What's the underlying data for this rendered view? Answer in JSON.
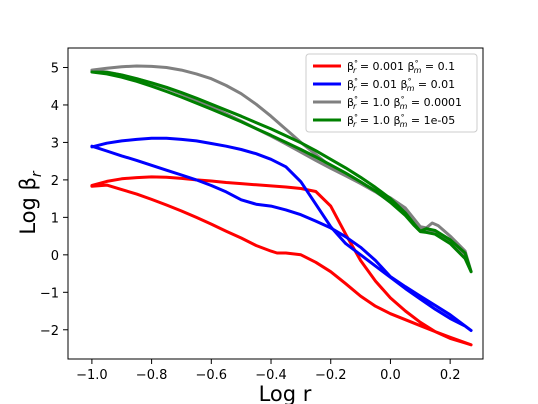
{
  "chart_data": {
    "type": "line",
    "title": "",
    "xlabel": "Log r",
    "ylabel_main": "Log β",
    "ylabel_sub": "r",
    "xlim": [
      -1.08,
      0.31
    ],
    "ylim": [
      -2.78,
      5.52
    ],
    "x_ticks": [
      -1.0,
      -0.8,
      -0.6,
      -0.4,
      -0.2,
      0.0,
      0.2
    ],
    "x_tick_labels": [
      "−1.0",
      "−0.8",
      "−0.6",
      "−0.4",
      "−0.2",
      "0.0",
      "0.2"
    ],
    "y_ticks": [
      -2,
      -1,
      0,
      1,
      2,
      3,
      4,
      5
    ],
    "y_tick_labels": [
      "−2",
      "−1",
      "0",
      "1",
      "2",
      "3",
      "4",
      "5"
    ],
    "grid": false,
    "legend_position": "top-right",
    "series": [
      {
        "legend_label": "β°r = 0.001 β°m = 0.1",
        "label_parts": [
          "β",
          "°",
          "r",
          " =  0.001 ",
          "β",
          "°",
          "m",
          " = 0.1"
        ],
        "color": "#ff0000",
        "points": [
          [
            -1.0,
            1.85
          ],
          [
            -0.95,
            1.96
          ],
          [
            -0.9,
            2.03
          ],
          [
            -0.85,
            2.06
          ],
          [
            -0.8,
            2.08
          ],
          [
            -0.75,
            2.07
          ],
          [
            -0.7,
            2.04
          ],
          [
            -0.65,
            2.0
          ],
          [
            -0.6,
            1.97
          ],
          [
            -0.55,
            1.93
          ],
          [
            -0.5,
            1.9
          ],
          [
            -0.45,
            1.87
          ],
          [
            -0.4,
            1.84
          ],
          [
            -0.35,
            1.81
          ],
          [
            -0.3,
            1.77
          ],
          [
            -0.25,
            1.69
          ],
          [
            -0.2,
            1.3
          ],
          [
            -0.15,
            0.55
          ],
          [
            -0.1,
            -0.15
          ],
          [
            -0.05,
            -0.7
          ],
          [
            0.0,
            -1.15
          ],
          [
            0.05,
            -1.5
          ],
          [
            0.1,
            -1.8
          ],
          [
            0.15,
            -2.05
          ],
          [
            0.2,
            -2.23
          ],
          [
            0.25,
            -2.35
          ],
          [
            0.27,
            -2.4
          ],
          [
            0.2,
            -2.2
          ],
          [
            0.15,
            -2.05
          ],
          [
            0.1,
            -1.89
          ],
          [
            0.05,
            -1.73
          ],
          [
            0.0,
            -1.57
          ],
          [
            -0.05,
            -1.37
          ],
          [
            -0.1,
            -1.1
          ],
          [
            -0.15,
            -0.77
          ],
          [
            -0.2,
            -0.45
          ],
          [
            -0.25,
            -0.2
          ],
          [
            -0.3,
            0.0
          ],
          [
            -0.35,
            0.05
          ],
          [
            -0.38,
            0.05
          ],
          [
            -0.4,
            0.1
          ],
          [
            -0.45,
            0.25
          ],
          [
            -0.5,
            0.45
          ],
          [
            -0.55,
            0.63
          ],
          [
            -0.6,
            0.82
          ],
          [
            -0.65,
            1.0
          ],
          [
            -0.7,
            1.17
          ],
          [
            -0.75,
            1.33
          ],
          [
            -0.8,
            1.48
          ],
          [
            -0.85,
            1.62
          ],
          [
            -0.9,
            1.74
          ],
          [
            -0.95,
            1.86
          ],
          [
            -1.0,
            1.83
          ]
        ]
      },
      {
        "legend_label": "β°r = 0.01 β°m = 0.01",
        "label_parts": [
          "β",
          "°",
          "r",
          " =  0.01 ",
          "β",
          "°",
          "m",
          " = 0.01"
        ],
        "color": "#0000ff",
        "points": [
          [
            -1.0,
            2.88
          ],
          [
            -0.95,
            2.98
          ],
          [
            -0.9,
            3.04
          ],
          [
            -0.85,
            3.08
          ],
          [
            -0.8,
            3.11
          ],
          [
            -0.75,
            3.11
          ],
          [
            -0.7,
            3.08
          ],
          [
            -0.65,
            3.04
          ],
          [
            -0.6,
            2.97
          ],
          [
            -0.55,
            2.9
          ],
          [
            -0.5,
            2.81
          ],
          [
            -0.45,
            2.7
          ],
          [
            -0.4,
            2.55
          ],
          [
            -0.35,
            2.35
          ],
          [
            -0.3,
            1.95
          ],
          [
            -0.25,
            1.35
          ],
          [
            -0.2,
            0.75
          ],
          [
            -0.15,
            0.3
          ],
          [
            -0.1,
            0.0
          ],
          [
            -0.05,
            -0.3
          ],
          [
            0.0,
            -0.6
          ],
          [
            0.05,
            -0.9
          ],
          [
            0.1,
            -1.18
          ],
          [
            0.15,
            -1.45
          ],
          [
            0.2,
            -1.7
          ],
          [
            0.25,
            -1.9
          ],
          [
            0.27,
            -2.02
          ],
          [
            0.2,
            -1.6
          ],
          [
            0.15,
            -1.35
          ],
          [
            0.1,
            -1.1
          ],
          [
            0.05,
            -0.85
          ],
          [
            0.0,
            -0.58
          ],
          [
            -0.05,
            -0.15
          ],
          [
            -0.1,
            0.2
          ],
          [
            -0.15,
            0.48
          ],
          [
            -0.2,
            0.72
          ],
          [
            -0.25,
            0.9
          ],
          [
            -0.3,
            1.07
          ],
          [
            -0.35,
            1.2
          ],
          [
            -0.4,
            1.3
          ],
          [
            -0.45,
            1.35
          ],
          [
            -0.5,
            1.47
          ],
          [
            -0.55,
            1.68
          ],
          [
            -0.6,
            1.85
          ],
          [
            -0.65,
            2.0
          ],
          [
            -0.7,
            2.13
          ],
          [
            -0.75,
            2.26
          ],
          [
            -0.8,
            2.39
          ],
          [
            -0.85,
            2.52
          ],
          [
            -0.9,
            2.64
          ],
          [
            -0.95,
            2.77
          ],
          [
            -1.0,
            2.9
          ]
        ]
      },
      {
        "legend_label": "β°r = 1.0 β°m = 0.0001",
        "label_parts": [
          "β",
          "°",
          "r",
          " =  1.0 ",
          "β",
          "°",
          "m",
          " = 0.0001"
        ],
        "color": "#808080",
        "points": [
          [
            -1.0,
            4.93
          ],
          [
            -0.95,
            4.98
          ],
          [
            -0.9,
            5.02
          ],
          [
            -0.85,
            5.04
          ],
          [
            -0.8,
            5.03
          ],
          [
            -0.75,
            5.0
          ],
          [
            -0.7,
            4.93
          ],
          [
            -0.65,
            4.83
          ],
          [
            -0.6,
            4.7
          ],
          [
            -0.55,
            4.52
          ],
          [
            -0.5,
            4.3
          ],
          [
            -0.45,
            4.02
          ],
          [
            -0.4,
            3.7
          ],
          [
            -0.35,
            3.35
          ],
          [
            -0.3,
            3.0
          ],
          [
            -0.25,
            2.68
          ],
          [
            -0.2,
            2.36
          ],
          [
            -0.15,
            2.14
          ],
          [
            -0.1,
            1.92
          ],
          [
            -0.05,
            1.72
          ],
          [
            0.0,
            1.52
          ],
          [
            0.05,
            1.25
          ],
          [
            0.1,
            0.75
          ],
          [
            0.12,
            0.72
          ],
          [
            0.14,
            0.85
          ],
          [
            0.16,
            0.78
          ],
          [
            0.2,
            0.5
          ],
          [
            0.25,
            0.1
          ],
          [
            0.27,
            -0.45
          ],
          [
            0.25,
            -0.05
          ],
          [
            0.2,
            0.35
          ],
          [
            0.15,
            0.6
          ],
          [
            0.12,
            0.63
          ],
          [
            0.1,
            0.7
          ],
          [
            0.05,
            1.2
          ],
          [
            0.0,
            1.42
          ],
          [
            -0.05,
            1.68
          ],
          [
            -0.1,
            1.9
          ],
          [
            -0.15,
            2.11
          ],
          [
            -0.2,
            2.31
          ],
          [
            -0.25,
            2.52
          ],
          [
            -0.3,
            2.74
          ],
          [
            -0.35,
            2.96
          ],
          [
            -0.4,
            3.17
          ],
          [
            -0.45,
            3.37
          ],
          [
            -0.5,
            3.57
          ],
          [
            -0.55,
            3.76
          ],
          [
            -0.6,
            3.95
          ],
          [
            -0.65,
            4.13
          ],
          [
            -0.7,
            4.3
          ],
          [
            -0.75,
            4.45
          ],
          [
            -0.8,
            4.58
          ],
          [
            -0.85,
            4.7
          ],
          [
            -0.9,
            4.8
          ],
          [
            -0.95,
            4.88
          ],
          [
            -1.0,
            4.92
          ]
        ]
      },
      {
        "legend_label": "β°r = 1.0 β°m = 1e-05",
        "label_parts": [
          "β",
          "°",
          "r",
          " =  1.0 ",
          "β",
          "°",
          "m",
          " = 1e-05"
        ],
        "color": "#008000",
        "points": [
          [
            -1.0,
            4.88
          ],
          [
            -0.95,
            4.87
          ],
          [
            -0.9,
            4.8
          ],
          [
            -0.85,
            4.7
          ],
          [
            -0.8,
            4.59
          ],
          [
            -0.75,
            4.47
          ],
          [
            -0.7,
            4.33
          ],
          [
            -0.65,
            4.18
          ],
          [
            -0.6,
            4.02
          ],
          [
            -0.55,
            3.86
          ],
          [
            -0.5,
            3.7
          ],
          [
            -0.45,
            3.53
          ],
          [
            -0.4,
            3.36
          ],
          [
            -0.35,
            3.18
          ],
          [
            -0.3,
            2.99
          ],
          [
            -0.25,
            2.78
          ],
          [
            -0.2,
            2.55
          ],
          [
            -0.15,
            2.32
          ],
          [
            -0.1,
            2.07
          ],
          [
            -0.05,
            1.8
          ],
          [
            0.0,
            1.5
          ],
          [
            0.05,
            1.12
          ],
          [
            0.08,
            0.82
          ],
          [
            0.1,
            0.63
          ],
          [
            0.12,
            0.7
          ],
          [
            0.15,
            0.65
          ],
          [
            0.2,
            0.4
          ],
          [
            0.25,
            0.05
          ],
          [
            0.27,
            -0.45
          ],
          [
            0.25,
            -0.1
          ],
          [
            0.2,
            0.3
          ],
          [
            0.15,
            0.55
          ],
          [
            0.12,
            0.6
          ],
          [
            0.1,
            0.62
          ],
          [
            0.08,
            0.78
          ],
          [
            0.05,
            1.05
          ],
          [
            0.0,
            1.4
          ],
          [
            -0.05,
            1.7
          ],
          [
            -0.1,
            1.95
          ],
          [
            -0.15,
            2.18
          ],
          [
            -0.2,
            2.4
          ],
          [
            -0.25,
            2.61
          ],
          [
            -0.3,
            2.81
          ],
          [
            -0.35,
            3.0
          ],
          [
            -0.4,
            3.19
          ],
          [
            -0.45,
            3.37
          ],
          [
            -0.5,
            3.55
          ],
          [
            -0.55,
            3.72
          ],
          [
            -0.6,
            3.89
          ],
          [
            -0.65,
            4.05
          ],
          [
            -0.7,
            4.21
          ],
          [
            -0.75,
            4.36
          ],
          [
            -0.8,
            4.5
          ],
          [
            -0.85,
            4.63
          ],
          [
            -0.9,
            4.74
          ],
          [
            -0.95,
            4.83
          ],
          [
            -1.0,
            4.88
          ]
        ]
      }
    ]
  }
}
